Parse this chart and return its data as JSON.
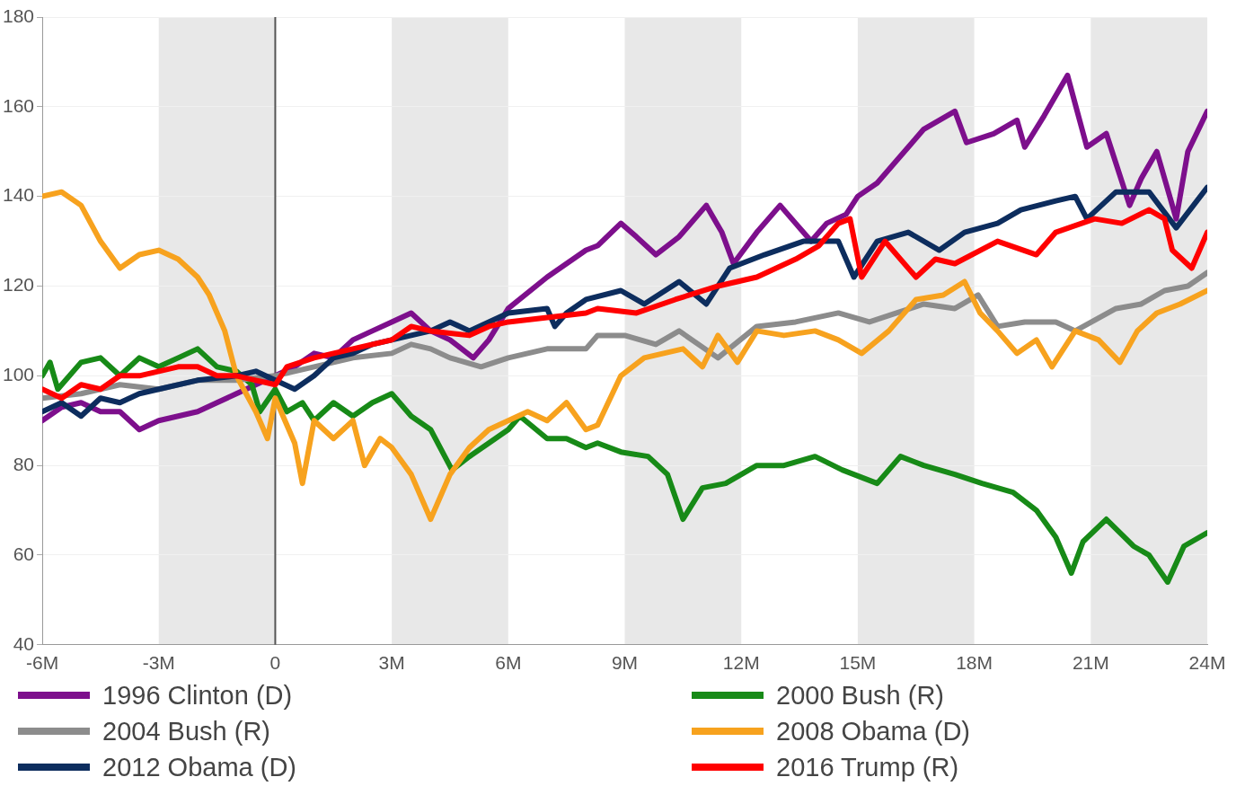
{
  "chart_data": {
    "type": "line",
    "xlim": [
      -6,
      24
    ],
    "xticks": [
      {
        "value": -6,
        "label": "-6M"
      },
      {
        "value": -3,
        "label": "-3M"
      },
      0,
      {
        "value": 3,
        "label": "3M"
      },
      {
        "value": 6,
        "label": "6M"
      },
      {
        "value": 9,
        "label": "9M"
      },
      {
        "value": 12,
        "label": "12M"
      },
      {
        "value": 15,
        "label": "15M"
      },
      {
        "value": 18,
        "label": "18M"
      },
      {
        "value": 21,
        "label": "21M"
      },
      {
        "value": 24,
        "label": "24M"
      }
    ],
    "ylim": [
      40,
      180
    ],
    "yticks": [
      40,
      60,
      80,
      100,
      120,
      140,
      160,
      180
    ],
    "grid": "y",
    "legend": "bottom",
    "marker": "none",
    "line_style": "solid",
    "ref_lines": [
      {
        "axis": "x",
        "value": 0,
        "color": "#555555"
      }
    ],
    "bands": [
      {
        "axis": "x",
        "from": -3,
        "to": 0,
        "color": "#e8e8e8"
      },
      {
        "axis": "x",
        "from": 3,
        "to": 6,
        "color": "#e8e8e8"
      },
      {
        "axis": "x",
        "from": 9,
        "to": 12,
        "color": "#e8e8e8"
      },
      {
        "axis": "x",
        "from": 15,
        "to": 18,
        "color": "#e8e8e8"
      },
      {
        "axis": "x",
        "from": 21,
        "to": 24,
        "color": "#e8e8e8"
      }
    ],
    "series": [
      {
        "name": "1996 Clinton (D)",
        "color": "#7d0f8c",
        "x": [
          -6,
          -5.5,
          -5,
          -4.5,
          -4,
          -3.5,
          -3,
          -2.5,
          -2,
          -1.5,
          -1,
          -0.5,
          0,
          0.5,
          1,
          1.5,
          2,
          2.5,
          3,
          3.5,
          4,
          4.5,
          5.1,
          5.5,
          6,
          7,
          8,
          8.3,
          8.9,
          9.3,
          9.8,
          10.4,
          11.1,
          11.5,
          11.8,
          12.4,
          13,
          13.4,
          13.8,
          14.2,
          14.7,
          15,
          15.5,
          16,
          16.7,
          17.5,
          17.8,
          18.5,
          19.1,
          19.3,
          19.8,
          20.4,
          20.9,
          21.4,
          22,
          22.3,
          22.7,
          23.2,
          23.5,
          24
        ],
        "values": [
          90,
          93,
          94,
          92,
          92,
          88,
          90,
          91,
          92,
          94,
          96,
          98,
          100,
          102,
          105,
          104,
          108,
          110,
          112,
          114,
          110,
          108,
          104,
          108,
          115,
          122,
          128,
          129,
          134,
          131,
          127,
          131,
          138,
          132,
          125,
          132,
          138,
          134,
          130,
          134,
          136,
          140,
          143,
          148,
          155,
          159,
          152,
          154,
          157,
          151,
          158,
          167,
          151,
          154,
          138,
          144,
          150,
          135,
          150,
          159
        ]
      },
      {
        "name": "2000 Bush (R)",
        "color": "#178a17",
        "x": [
          -6,
          -5.8,
          -5.6,
          -5,
          -4.5,
          -4,
          -3.5,
          -3,
          -2.5,
          -2,
          -1.5,
          -1,
          -0.6,
          -0.4,
          0,
          0.3,
          0.7,
          1,
          1.5,
          2,
          2.5,
          3,
          3.5,
          4,
          4.55,
          5,
          5.5,
          6,
          6.3,
          7,
          7.5,
          8,
          8.3,
          8.9,
          9.6,
          10.1,
          10.5,
          11,
          11.6,
          12.4,
          13.1,
          13.9,
          14.6,
          15.5,
          16.1,
          16.7,
          17.5,
          18.2,
          19,
          19.6,
          20.1,
          20.5,
          20.8,
          21.4,
          22.1,
          22.5,
          22.98,
          23.4,
          24
        ],
        "values": [
          100,
          103,
          97,
          103,
          104,
          100,
          104,
          102,
          104,
          106,
          102,
          101,
          98,
          92,
          97,
          92,
          94,
          90,
          94,
          91,
          94,
          96,
          91,
          88,
          79,
          82,
          85,
          88,
          91,
          86,
          86,
          84,
          85,
          83,
          82,
          78,
          68,
          75,
          76,
          80,
          80,
          82,
          79,
          76,
          82,
          80,
          78,
          76,
          74,
          70,
          64,
          56,
          63,
          68,
          62,
          60,
          54,
          62,
          65
        ]
      },
      {
        "name": "2004 Bush (R)",
        "color": "#8c8c8c",
        "x": [
          -6,
          -5,
          -4,
          -3,
          -2,
          -1,
          0,
          1,
          2,
          3,
          3.5,
          4,
          4.5,
          5.3,
          6,
          7,
          8,
          8.3,
          9,
          9.8,
          10.4,
          11.4,
          12.4,
          13.4,
          14.5,
          15.3,
          16,
          16.7,
          17.5,
          18.1,
          18.6,
          19.3,
          20.1,
          20.6,
          21.65,
          22.3,
          22.9,
          23.5,
          24
        ],
        "values": [
          95,
          96,
          98,
          97,
          99,
          99,
          100,
          102,
          104,
          105,
          107,
          106,
          104,
          102,
          104,
          106,
          106,
          109,
          109,
          107,
          110,
          104,
          111,
          112,
          114,
          112,
          114,
          116,
          115,
          118,
          111,
          112,
          112,
          110,
          115,
          116,
          119,
          120,
          123
        ]
      },
      {
        "name": "2008 Obama (D)",
        "color": "#f7a21e",
        "x": [
          -6,
          -5.5,
          -5,
          -4.5,
          -4,
          -3.5,
          -3,
          -2.5,
          -2,
          -1.7,
          -1.3,
          -1,
          -0.5,
          -0.2,
          0,
          0.5,
          0.7,
          1,
          1.5,
          2,
          2.3,
          2.7,
          3,
          3.5,
          4,
          4.5,
          5,
          5.5,
          6,
          6.5,
          7,
          7.5,
          8,
          8.3,
          8.9,
          9.5,
          10.5,
          11,
          11.4,
          11.9,
          12.4,
          13.1,
          13.9,
          14.5,
          15.1,
          15.8,
          16.5,
          17.2,
          17.75,
          18.15,
          18.6,
          19.1,
          19.6,
          20,
          20.6,
          21.2,
          21.75,
          22.2,
          22.7,
          23.3,
          24
        ],
        "values": [
          140,
          141,
          138,
          130,
          124,
          127,
          128,
          126,
          122,
          118,
          110,
          100,
          92,
          86,
          95,
          85,
          76,
          90,
          86,
          90,
          80,
          86,
          84,
          78,
          68,
          78,
          84,
          88,
          90,
          92,
          90,
          94,
          88,
          89,
          100,
          104,
          106,
          102,
          109,
          103,
          110,
          109,
          110,
          108,
          105,
          110,
          117,
          118,
          121,
          114,
          110,
          105,
          108,
          102,
          110,
          108,
          103,
          110,
          114,
          116,
          119
        ]
      },
      {
        "name": "2012 Obama (D)",
        "color": "#0d2d5e",
        "x": [
          -6,
          -5.5,
          -5,
          -4.5,
          -4,
          -3.5,
          -3,
          -2,
          -1,
          -0.5,
          0,
          0.5,
          1,
          1.5,
          2,
          2.5,
          3,
          4,
          4.5,
          5,
          5.5,
          6,
          7,
          7.2,
          7.5,
          8,
          8.9,
          9.5,
          10.4,
          11.1,
          11.7,
          12.6,
          13.6,
          14.5,
          14.9,
          15.5,
          16.3,
          17.1,
          17.75,
          18.6,
          19.2,
          20.1,
          20.6,
          20.9,
          21.65,
          22.5,
          23.2,
          24
        ],
        "values": [
          92,
          94,
          91,
          95,
          94,
          96,
          97,
          99,
          100,
          101,
          99,
          97,
          100,
          104,
          105,
          107,
          108,
          110,
          112,
          110,
          112,
          114,
          115,
          111,
          114,
          117,
          119,
          116,
          121,
          116,
          124,
          127,
          130,
          130,
          122,
          130,
          132,
          128,
          132,
          134,
          137,
          139,
          140,
          135,
          141,
          141,
          133,
          142
        ]
      },
      {
        "name": "2016 Trump (R)",
        "color": "#ff0000",
        "x": [
          -6,
          -5.5,
          -5,
          -4.5,
          -4,
          -3.5,
          -3,
          -2.5,
          -2,
          -1.5,
          -1,
          -0.5,
          0,
          0.3,
          1,
          2,
          3,
          3.5,
          4,
          5,
          5.5,
          6,
          7,
          8,
          8.3,
          9.3,
          10.3,
          11.4,
          12.4,
          13.4,
          14,
          14.5,
          14.8,
          15.1,
          15.7,
          16.5,
          17,
          17.5,
          18.6,
          19.6,
          20.1,
          21.1,
          21.8,
          22.5,
          22.9,
          23.1,
          23.6,
          24
        ],
        "values": [
          97,
          95,
          98,
          97,
          100,
          100,
          101,
          102,
          102,
          100,
          100,
          99,
          98,
          102,
          104,
          106,
          108,
          111,
          110,
          109,
          111,
          112,
          113,
          114,
          115,
          114,
          117,
          120,
          122,
          126,
          129,
          134,
          135,
          122,
          130,
          122,
          126,
          125,
          130,
          127,
          132,
          135,
          134,
          137,
          135,
          128,
          124,
          132
        ]
      }
    ]
  }
}
